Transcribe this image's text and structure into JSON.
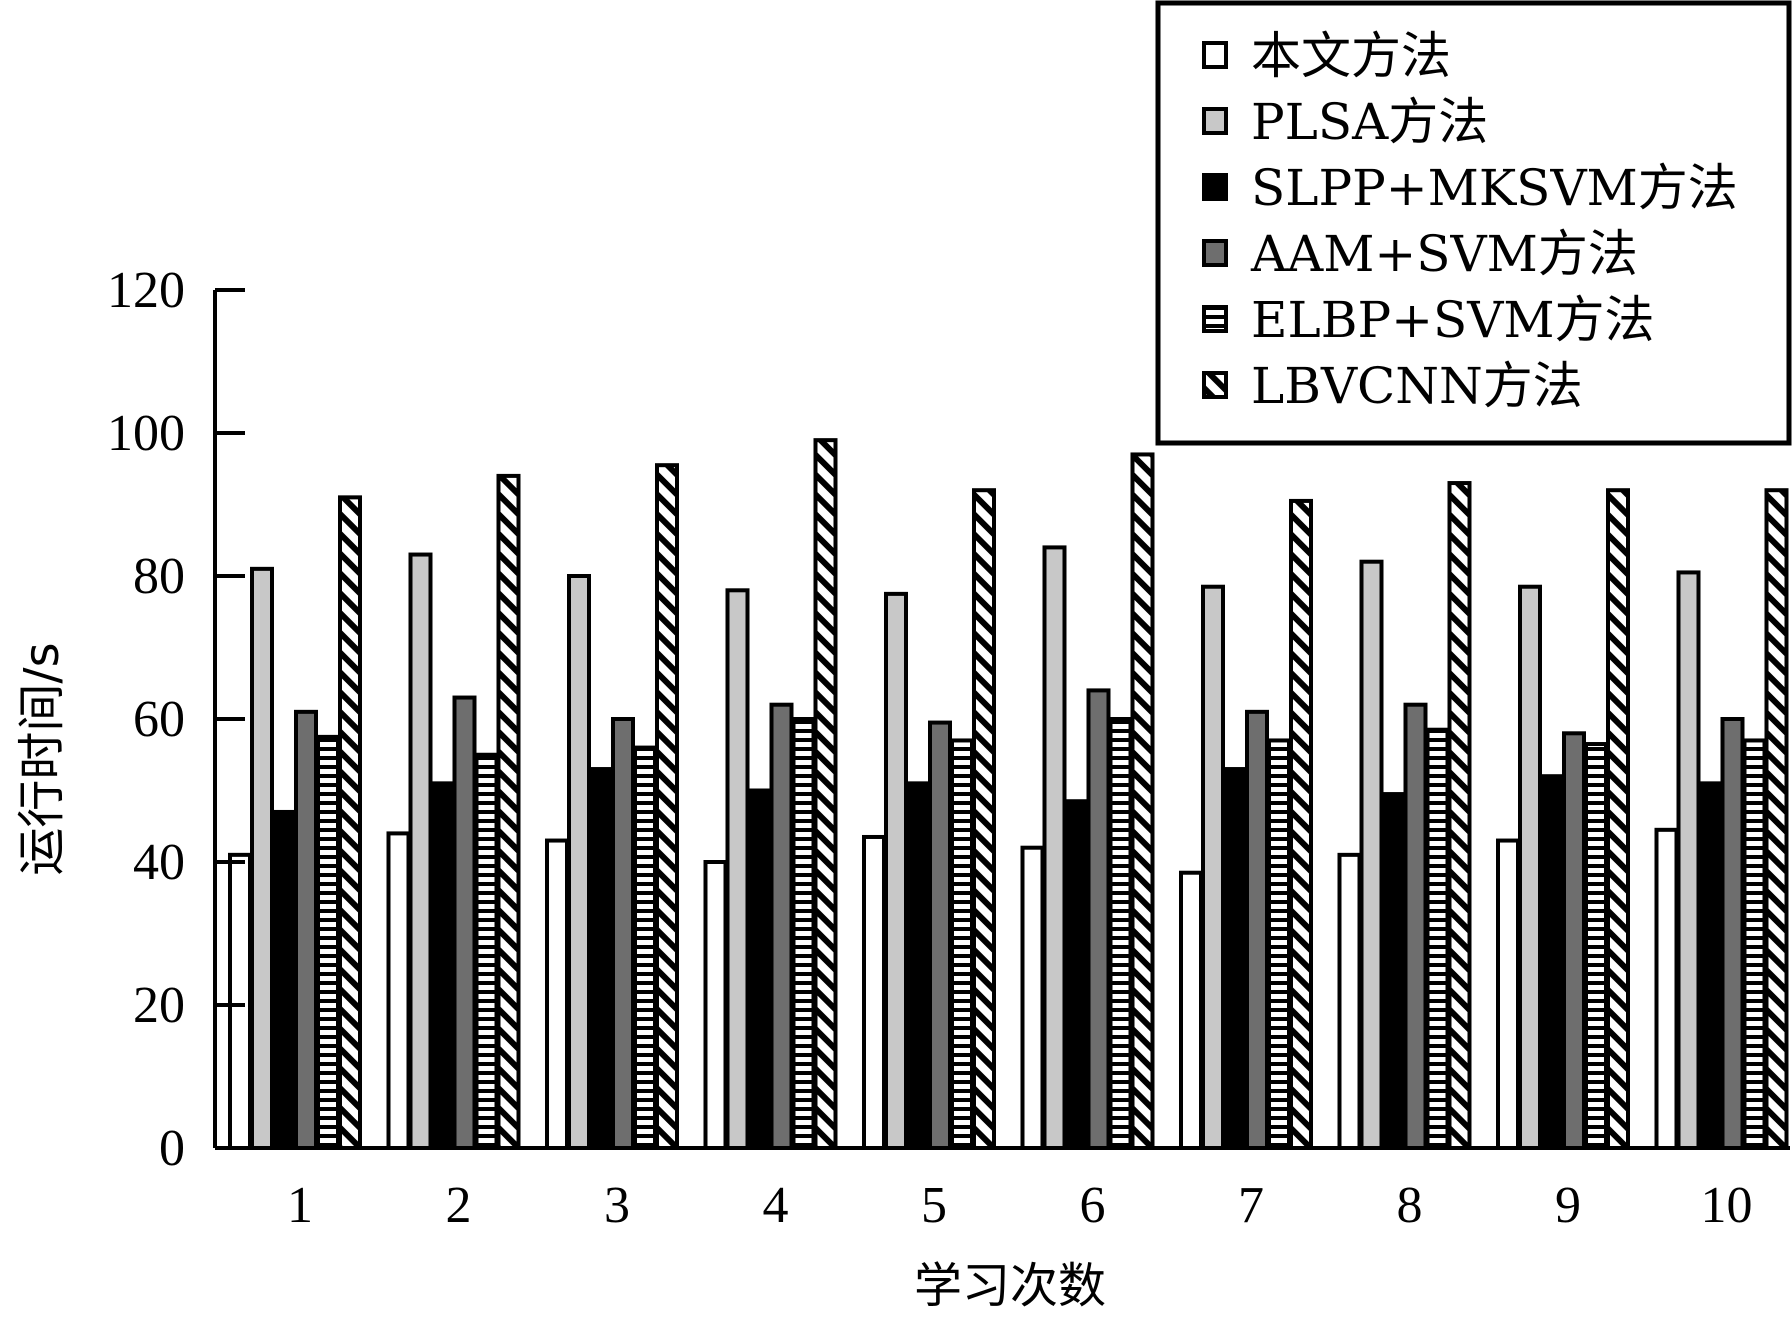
{
  "chart_data": {
    "type": "bar",
    "xlabel": "学习次数",
    "ylabel": "运行时间/s",
    "ylim": [
      0,
      120
    ],
    "yticks": [
      0,
      20,
      40,
      60,
      80,
      100,
      120
    ],
    "categories": [
      "1",
      "2",
      "3",
      "4",
      "5",
      "6",
      "7",
      "8",
      "9",
      "10"
    ],
    "legend_position": "top-right",
    "grid": false,
    "series": [
      {
        "name": "本文方法",
        "pattern": "white",
        "color": "#ffffff",
        "values": [
          41,
          44,
          43,
          40,
          43.5,
          42,
          38.5,
          41,
          43,
          44.5
        ]
      },
      {
        "name": "PLSA方法",
        "pattern": "lightgray",
        "color": "#c8c8c8",
        "values": [
          81,
          83,
          80,
          78,
          77.5,
          84,
          78.5,
          82,
          78.5,
          80.5
        ]
      },
      {
        "name": "SLPP+MKSVM方法",
        "pattern": "black",
        "color": "#000000",
        "values": [
          47,
          51,
          53,
          50,
          51,
          48.5,
          53,
          49.5,
          52,
          51
        ]
      },
      {
        "name": "AAM+SVM方法",
        "pattern": "darkgray",
        "color": "#6e6e6e",
        "values": [
          61,
          63,
          60,
          62,
          59.5,
          64,
          61,
          62,
          58,
          60
        ]
      },
      {
        "name": "ELBP+SVM方法",
        "pattern": "hstripe",
        "color": "#000000",
        "values": [
          57.5,
          55,
          56,
          60,
          57,
          60,
          57,
          58.5,
          56.5,
          57
        ]
      },
      {
        "name": "LBVCNN方法",
        "pattern": "diag",
        "color": "#000000",
        "values": [
          91,
          94,
          95.5,
          99,
          92,
          97,
          90.5,
          93,
          92,
          92
        ]
      }
    ]
  }
}
